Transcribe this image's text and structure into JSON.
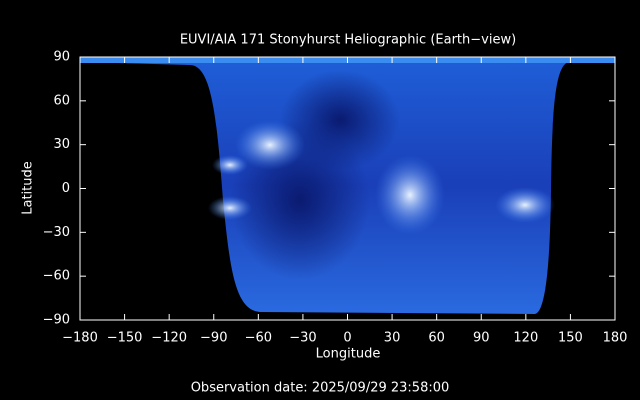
{
  "chart_data": {
    "type": "image",
    "title": "EUVI/AIA 171 Stonyhurst Heliographic (Earth−view)",
    "xlabel": "Longitude",
    "ylabel": "Latitude",
    "caption": "Observation date: 2025/09/29 23:58:00",
    "xlim": [
      -180,
      180
    ],
    "ylim": [
      -90,
      90
    ],
    "xticks": [
      {
        "value": -180,
        "label": "−180"
      },
      {
        "value": -150,
        "label": "−150"
      },
      {
        "value": -120,
        "label": "−120"
      },
      {
        "value": -90,
        "label": "−90"
      },
      {
        "value": -60,
        "label": "−60"
      },
      {
        "value": -30,
        "label": "−30"
      },
      0,
      30,
      60,
      90,
      120,
      150,
      180
    ],
    "yticks": [
      {
        "value": -90,
        "label": "−90"
      },
      {
        "value": -60,
        "label": "−60"
      },
      {
        "value": -30,
        "label": "−30"
      },
      0,
      30,
      60,
      90
    ]
  }
}
